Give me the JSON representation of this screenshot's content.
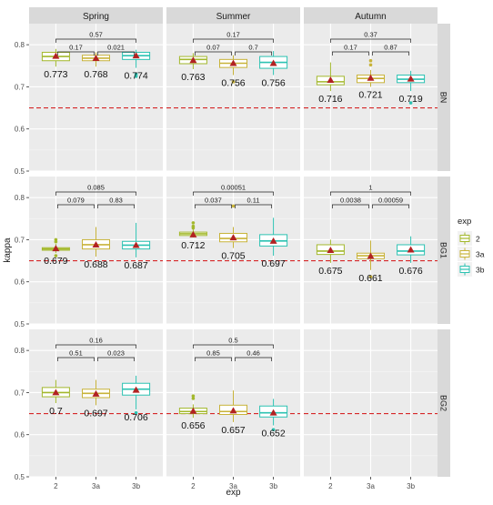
{
  "chart_data": {
    "type": "boxplot",
    "xlabel": "exp",
    "ylabel": "kappa",
    "ylim": [
      0.5,
      0.85
    ],
    "yticks": [
      0.5,
      0.6,
      0.7,
      0.8
    ],
    "categories": [
      "2",
      "3a",
      "3b"
    ],
    "grid": true,
    "legend": {
      "title": "exp",
      "position": "right",
      "entries": [
        {
          "label": "2",
          "color": "#a3b82c"
        },
        {
          "label": "3a",
          "color": "#c8b33a"
        },
        {
          "label": "3b",
          "color": "#2cc2b2"
        }
      ]
    },
    "reference_line": {
      "y": 0.65,
      "color": "#d62728",
      "style": "dashed"
    },
    "column_titles": [
      "Spring",
      "Summer",
      "Autumn"
    ],
    "row_titles": [
      "BN",
      "BG1",
      "BG2"
    ],
    "panels": [
      {
        "column": "Spring",
        "row": "BN",
        "boxes": [
          {
            "category": "2",
            "q1": 0.762,
            "median": 0.772,
            "q3": 0.782,
            "whisker_low": 0.748,
            "whisker_high": 0.79,
            "mean": 0.773,
            "outliers": []
          },
          {
            "category": "3a",
            "q1": 0.762,
            "median": 0.768,
            "q3": 0.775,
            "whisker_low": 0.748,
            "whisker_high": 0.782,
            "mean": 0.768,
            "outliers": []
          },
          {
            "category": "3b",
            "q1": 0.765,
            "median": 0.774,
            "q3": 0.782,
            "whisker_low": 0.745,
            "whisker_high": 0.788,
            "mean": 0.774,
            "outliers": [
              0.73,
              0.725
            ]
          }
        ],
        "mean_labels": [
          "0.773",
          "0.768",
          "0.774"
        ],
        "pvalues": {
          "ab": "0.17",
          "bc": "0.021",
          "ac": "0.57"
        }
      },
      {
        "column": "Summer",
        "row": "BN",
        "boxes": [
          {
            "category": "2",
            "q1": 0.755,
            "median": 0.765,
            "q3": 0.772,
            "whisker_low": 0.742,
            "whisker_high": 0.78,
            "mean": 0.763,
            "outliers": []
          },
          {
            "category": "3a",
            "q1": 0.746,
            "median": 0.756,
            "q3": 0.765,
            "whisker_low": 0.728,
            "whisker_high": 0.775,
            "mean": 0.756,
            "outliers": [
              0.712
            ]
          },
          {
            "category": "3b",
            "q1": 0.744,
            "median": 0.758,
            "q3": 0.772,
            "whisker_low": 0.728,
            "whisker_high": 0.785,
            "mean": 0.756,
            "outliers": []
          }
        ],
        "mean_labels": [
          "0.763",
          "0.756",
          "0.756"
        ],
        "pvalues": {
          "ab": "0.07",
          "bc": "0.7",
          "ac": "0.17"
        }
      },
      {
        "column": "Autumn",
        "row": "BN",
        "boxes": [
          {
            "category": "2",
            "q1": 0.705,
            "median": 0.712,
            "q3": 0.725,
            "whisker_low": 0.69,
            "whisker_high": 0.758,
            "mean": 0.716,
            "outliers": []
          },
          {
            "category": "3a",
            "q1": 0.71,
            "median": 0.72,
            "q3": 0.728,
            "whisker_low": 0.7,
            "whisker_high": 0.74,
            "mean": 0.721,
            "outliers": [
              0.762,
              0.752
            ]
          },
          {
            "category": "3b",
            "q1": 0.71,
            "median": 0.718,
            "q3": 0.728,
            "whisker_low": 0.69,
            "whisker_high": 0.738,
            "mean": 0.719,
            "outliers": [
              0.662
            ]
          }
        ],
        "mean_labels": [
          "0.716",
          "0.721",
          "0.719"
        ],
        "pvalues": {
          "ab": "0.17",
          "bc": "0.87",
          "ac": "0.37"
        }
      },
      {
        "column": "Spring",
        "row": "BG1",
        "boxes": [
          {
            "category": "2",
            "q1": 0.675,
            "median": 0.678,
            "q3": 0.681,
            "whisker_low": 0.668,
            "whisker_high": 0.69,
            "mean": 0.679,
            "outliers": [
              0.7,
              0.695,
              0.662
            ]
          },
          {
            "category": "3a",
            "q1": 0.678,
            "median": 0.688,
            "q3": 0.7,
            "whisker_low": 0.66,
            "whisker_high": 0.73,
            "mean": 0.688,
            "outliers": []
          },
          {
            "category": "3b",
            "q1": 0.678,
            "median": 0.687,
            "q3": 0.696,
            "whisker_low": 0.658,
            "whisker_high": 0.74,
            "mean": 0.687,
            "outliers": []
          }
        ],
        "mean_labels": [
          "0.679",
          "0.688",
          "0.687"
        ],
        "pvalues": {
          "ab": "0.079",
          "bc": "0.83",
          "ac": "0.085"
        }
      },
      {
        "column": "Summer",
        "row": "BG1",
        "boxes": [
          {
            "category": "2",
            "q1": 0.71,
            "median": 0.714,
            "q3": 0.718,
            "whisker_low": 0.705,
            "whisker_high": 0.725,
            "mean": 0.712,
            "outliers": [
              0.74,
              0.732,
              0.728
            ]
          },
          {
            "category": "3a",
            "q1": 0.695,
            "median": 0.703,
            "q3": 0.715,
            "whisker_low": 0.68,
            "whisker_high": 0.73,
            "mean": 0.705,
            "outliers": [
              0.78
            ]
          },
          {
            "category": "3b",
            "q1": 0.685,
            "median": 0.697,
            "q3": 0.712,
            "whisker_low": 0.662,
            "whisker_high": 0.752,
            "mean": 0.697,
            "outliers": []
          }
        ],
        "mean_labels": [
          "0.712",
          "0.705",
          "0.697"
        ],
        "pvalues": {
          "ab": "0.037",
          "bc": "0.11",
          "ac": "0.00051"
        }
      },
      {
        "column": "Autumn",
        "row": "BG1",
        "boxes": [
          {
            "category": "2",
            "q1": 0.665,
            "median": 0.673,
            "q3": 0.688,
            "whisker_low": 0.645,
            "whisker_high": 0.7,
            "mean": 0.675,
            "outliers": []
          },
          {
            "category": "3a",
            "q1": 0.655,
            "median": 0.662,
            "q3": 0.668,
            "whisker_low": 0.628,
            "whisker_high": 0.698,
            "mean": 0.661,
            "outliers": [
              0.612
            ]
          },
          {
            "category": "3b",
            "q1": 0.664,
            "median": 0.673,
            "q3": 0.688,
            "whisker_low": 0.645,
            "whisker_high": 0.708,
            "mean": 0.676,
            "outliers": []
          }
        ],
        "mean_labels": [
          "0.675",
          "0.661",
          "0.676"
        ],
        "pvalues": {
          "ab": "0.0038",
          "bc": "0.00059",
          "ac": "1"
        }
      },
      {
        "column": "Spring",
        "row": "BG2",
        "boxes": [
          {
            "category": "2",
            "q1": 0.69,
            "median": 0.7,
            "q3": 0.712,
            "whisker_low": 0.675,
            "whisker_high": 0.73,
            "mean": 0.7,
            "outliers": []
          },
          {
            "category": "3a",
            "q1": 0.688,
            "median": 0.698,
            "q3": 0.708,
            "whisker_low": 0.67,
            "whisker_high": 0.73,
            "mean": 0.697,
            "outliers": []
          },
          {
            "category": "3b",
            "q1": 0.694,
            "median": 0.708,
            "q3": 0.722,
            "whisker_low": 0.66,
            "whisker_high": 0.74,
            "mean": 0.706,
            "outliers": [
              0.652
            ]
          }
        ],
        "mean_labels": [
          "0.7",
          "0.697",
          "0.706"
        ],
        "pvalues": {
          "ab": "0.51",
          "bc": "0.023",
          "ac": "0.16"
        }
      },
      {
        "column": "Summer",
        "row": "BG2",
        "boxes": [
          {
            "category": "2",
            "q1": 0.65,
            "median": 0.655,
            "q3": 0.663,
            "whisker_low": 0.64,
            "whisker_high": 0.672,
            "mean": 0.656,
            "outliers": [
              0.692,
              0.686
            ]
          },
          {
            "category": "3a",
            "q1": 0.648,
            "median": 0.655,
            "q3": 0.67,
            "whisker_low": 0.63,
            "whisker_high": 0.705,
            "mean": 0.657,
            "outliers": []
          },
          {
            "category": "3b",
            "q1": 0.642,
            "median": 0.652,
            "q3": 0.668,
            "whisker_low": 0.622,
            "whisker_high": 0.685,
            "mean": 0.652,
            "outliers": [
              0.612
            ]
          }
        ],
        "mean_labels": [
          "0.656",
          "0.657",
          "0.652"
        ],
        "pvalues": {
          "ab": "0.85",
          "bc": "0.46",
          "ac": "0.5"
        }
      },
      {
        "column": "Autumn",
        "row": "BG2",
        "boxes": [],
        "mean_labels": [],
        "pvalues": null
      }
    ]
  }
}
